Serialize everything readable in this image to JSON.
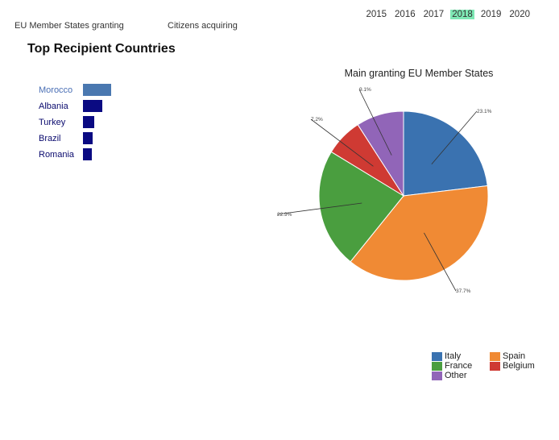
{
  "tabs": [
    {
      "label": "EU Member States granting"
    },
    {
      "label": "Citizens acquiring"
    }
  ],
  "years": [
    "2015",
    "2016",
    "2017",
    "2018",
    "2019",
    "2020"
  ],
  "selected_year": "2018",
  "top_recipients": {
    "title": "Top Recipient Countries",
    "items": [
      {
        "label": "Morocco",
        "value": 100,
        "highlight": true
      },
      {
        "label": "Albania",
        "value": 68,
        "highlight": false
      },
      {
        "label": "Turkey",
        "value": 40,
        "highlight": false
      },
      {
        "label": "Brazil",
        "value": 34,
        "highlight": false
      },
      {
        "label": "Romania",
        "value": 32,
        "highlight": false
      }
    ]
  },
  "colors": {
    "Italy": "#3a72b0",
    "Spain": "#f08a34",
    "France": "#4a9e3f",
    "Belgium": "#cf3a33",
    "Other": "#9165b8",
    "active_year": "#7ee8b4",
    "bar": "#0a0a82",
    "bar_highlight": "#4a78b0"
  },
  "chart_data": {
    "type": "pie",
    "title": "Main granting EU Member States",
    "slices": [
      {
        "label": "Italy",
        "value": 23.1,
        "display": "23.1%"
      },
      {
        "label": "Spain",
        "value": 37.7,
        "display": "37.7%"
      },
      {
        "label": "France",
        "value": 22.9,
        "display": "22.9%"
      },
      {
        "label": "Belgium",
        "value": 7.2,
        "display": "7.2%"
      },
      {
        "label": "Other",
        "value": 9.1,
        "display": "9.1%"
      }
    ],
    "legend": {
      "placement": "bottom-right",
      "entries": [
        "Italy",
        "Spain",
        "France",
        "Belgium",
        "Other"
      ]
    }
  }
}
